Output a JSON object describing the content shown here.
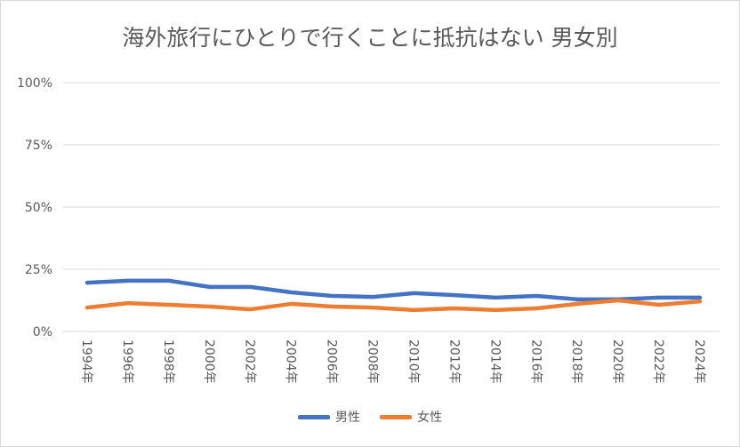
{
  "chart_data": {
    "type": "line",
    "title": "海外旅行にひとりで行くことに抵抗はない 男女別",
    "categories": [
      "1994年",
      "1996年",
      "1998年",
      "2000年",
      "2002年",
      "2004年",
      "2006年",
      "2008年",
      "2010年",
      "2012年",
      "2014年",
      "2016年",
      "2018年",
      "2020年",
      "2022年",
      "2024年"
    ],
    "series": [
      {
        "name": "男性",
        "color": "#4472C4",
        "values": [
          19.6,
          20.4,
          20.4,
          17.9,
          17.9,
          15.7,
          14.3,
          13.9,
          15.4,
          14.6,
          13.6,
          14.3,
          12.9,
          12.9,
          13.6,
          13.6
        ]
      },
      {
        "name": "女性",
        "color": "#ED7D31",
        "values": [
          9.6,
          11.4,
          10.7,
          10.0,
          8.9,
          11.1,
          10.0,
          9.6,
          8.6,
          9.3,
          8.6,
          9.3,
          11.1,
          12.5,
          10.7,
          12.1
        ]
      }
    ],
    "yticks": [
      "0%",
      "25%",
      "50%",
      "75%",
      "100%"
    ],
    "ylim": [
      0,
      100
    ],
    "grid": true,
    "legend": "bottom"
  }
}
